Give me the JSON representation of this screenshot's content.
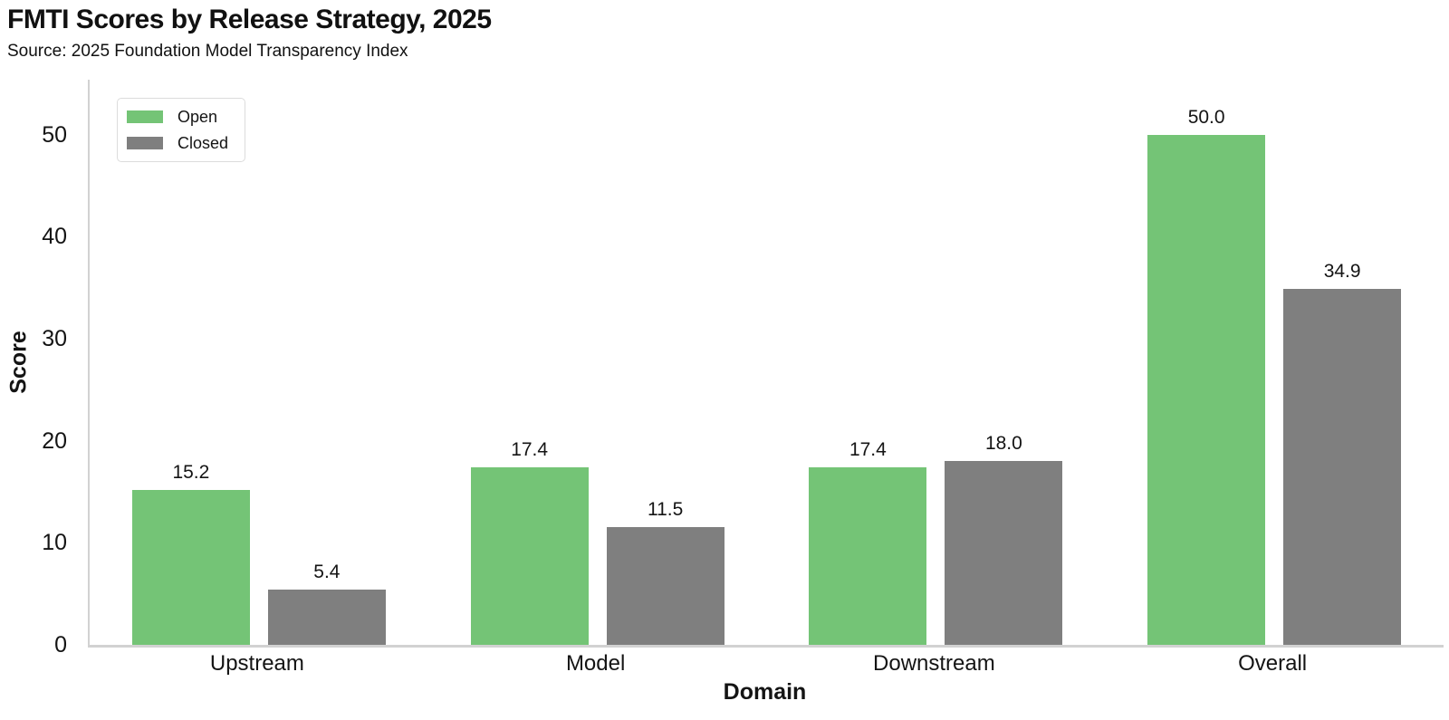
{
  "header": {
    "title": "FMTI Scores by Release Strategy, 2025",
    "source": "Source: 2025 Foundation Model Transparency Index"
  },
  "chart_data": {
    "type": "bar",
    "title": "FMTI Scores by Release Strategy, 2025",
    "subtitle": "Source: 2025 Foundation Model Transparency Index",
    "categories": [
      "Upstream",
      "Model",
      "Downstream",
      "Overall"
    ],
    "series": [
      {
        "name": "Open",
        "color": "#74c476",
        "values": [
          15.2,
          17.4,
          17.4,
          50.0
        ],
        "labels": [
          "15.2",
          "17.4",
          "17.4",
          "50.0"
        ]
      },
      {
        "name": "Closed",
        "color": "#7f7f7f",
        "values": [
          5.4,
          11.5,
          18.0,
          34.9
        ],
        "labels": [
          "5.4",
          "11.5",
          "18.0",
          "34.9"
        ]
      }
    ],
    "xlabel": "Domain",
    "ylabel": "Score",
    "yticks": [
      0,
      10,
      20,
      30,
      40,
      50
    ],
    "ylim": [
      0,
      55.4
    ],
    "grid": false,
    "legend_position": "top-left",
    "bar_value_labels": true,
    "axis_color": "#d2d2d2",
    "text_color": "#141414"
  }
}
